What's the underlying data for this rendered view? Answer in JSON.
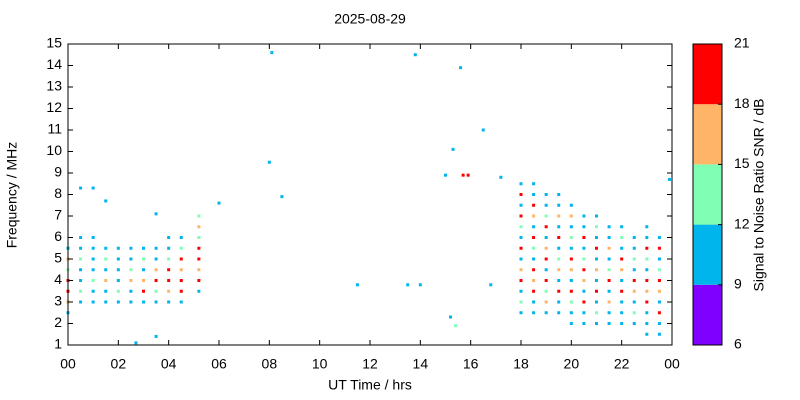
{
  "chart_data": {
    "type": "scatter",
    "title": "2025-08-29",
    "x_label": "UT Time / hrs",
    "y_label": "Frequency / MHz",
    "xlim": [
      0,
      24
    ],
    "ylim": [
      1,
      15
    ],
    "xticks": [
      {
        "value": 0,
        "label": "00"
      },
      {
        "value": 2,
        "label": "02"
      },
      {
        "value": 4,
        "label": "04"
      },
      {
        "value": 6,
        "label": "06"
      },
      {
        "value": 8,
        "label": "08"
      },
      10,
      12,
      14,
      16,
      18,
      20,
      22,
      {
        "value": 24,
        "label": "00"
      }
    ],
    "yticks": [
      1,
      2,
      3,
      4,
      5,
      6,
      7,
      8,
      9,
      10,
      11,
      12,
      13,
      14,
      15
    ],
    "x": [
      0,
      0,
      0,
      0,
      0,
      0,
      0,
      0.5,
      0.5,
      0.5,
      0.5,
      0.5,
      0.5,
      0.5,
      1,
      1,
      1,
      1,
      1,
      1,
      1,
      1.5,
      1.5,
      1.5,
      1.5,
      1.5,
      1.5,
      2,
      2,
      2,
      2,
      2,
      2,
      2.5,
      2.5,
      2.5,
      2.5,
      2.5,
      2.5,
      3,
      3,
      3,
      3,
      3,
      3,
      3.5,
      3.5,
      3.5,
      3.5,
      3.5,
      3.5,
      4,
      4,
      4,
      4,
      4,
      4,
      4,
      4.5,
      4.5,
      4.5,
      4.5,
      4.5,
      4.5,
      4.5,
      5.2,
      5.2,
      5.2,
      5.2,
      5.2,
      5.2,
      5.2,
      5.2,
      18,
      18,
      18,
      18,
      18,
      18,
      18,
      18,
      18,
      18,
      18,
      18,
      18,
      18.5,
      18.5,
      18.5,
      18.5,
      18.5,
      18.5,
      18.5,
      18.5,
      18.5,
      18.5,
      18.5,
      18.5,
      18.5,
      19,
      19,
      19,
      19,
      19,
      19,
      19,
      19,
      19,
      19,
      19,
      19,
      19.5,
      19.5,
      19.5,
      19.5,
      19.5,
      19.5,
      19.5,
      19.5,
      19.5,
      19.5,
      19.5,
      19.5,
      20,
      20,
      20,
      20,
      20,
      20,
      20,
      20,
      20,
      20,
      20,
      20,
      20.5,
      20.5,
      20.5,
      20.5,
      20.5,
      20.5,
      20.5,
      20.5,
      20.5,
      20.5,
      20.5,
      21,
      21,
      21,
      21,
      21,
      21,
      21,
      21,
      21,
      21,
      21,
      21.5,
      21.5,
      21.5,
      21.5,
      21.5,
      21.5,
      21.5,
      21.5,
      21.5,
      21.5,
      22,
      22,
      22,
      22,
      22,
      22,
      22,
      22,
      22,
      22,
      22.5,
      22.5,
      22.5,
      22.5,
      22.5,
      22.5,
      22.5,
      22.5,
      22.5,
      23,
      23,
      23,
      23,
      23,
      23,
      23,
      23,
      23,
      23,
      23,
      23.5,
      23.5,
      23.5,
      23.5,
      23.5,
      23.5,
      23.5,
      23.5,
      23.5,
      23.5,
      0.5,
      1,
      1.5,
      3.5,
      6,
      8.1,
      8,
      8.5,
      11.5,
      13.5,
      14,
      13.8,
      15,
      15.3,
      15.6,
      15.7,
      15.9,
      16.5,
      16.8,
      17.2,
      15.2,
      15.4,
      2.7,
      23.9,
      3.5
    ],
    "values": [
      2.5,
      3,
      3.5,
      4,
      4.5,
      5,
      5.5,
      3,
      3.5,
      4,
      4.5,
      5,
      5.5,
      6,
      3,
      3.5,
      4,
      4.5,
      5,
      5.5,
      6,
      3,
      3.5,
      4,
      4.5,
      5,
      5.5,
      3,
      3.5,
      4,
      4.5,
      5,
      5.5,
      3,
      3.5,
      4,
      4.5,
      5,
      5.5,
      3,
      3.5,
      4,
      4.5,
      5,
      5.5,
      3,
      3.5,
      4,
      4.5,
      5,
      5.5,
      3,
      3.5,
      4,
      4.5,
      5,
      5.5,
      6,
      3,
      3.5,
      4,
      4.5,
      5,
      5.5,
      6,
      3.5,
      4,
      4.5,
      5,
      5.5,
      6,
      6.5,
      7,
      2.5,
      3,
      3.5,
      4,
      4.5,
      5,
      5.5,
      6,
      6.5,
      7,
      7.5,
      8,
      8.5,
      2.5,
      3,
      3.5,
      4,
      4.5,
      5,
      5.5,
      6,
      6.5,
      7,
      7.5,
      8,
      8.5,
      2.5,
      3,
      3.5,
      4,
      4.5,
      5,
      5.5,
      6,
      6.5,
      7,
      7.5,
      8,
      2.5,
      3,
      3.5,
      4,
      4.5,
      5,
      5.5,
      6,
      6.5,
      7,
      7.5,
      8,
      2,
      2.5,
      3,
      3.5,
      4,
      4.5,
      5,
      5.5,
      6,
      6.5,
      7,
      7.5,
      2,
      2.5,
      3,
      3.5,
      4,
      4.5,
      5,
      5.5,
      6,
      6.5,
      7,
      2,
      2.5,
      3,
      3.5,
      4,
      4.5,
      5,
      5.5,
      6,
      6.5,
      7,
      2,
      2.5,
      3,
      3.5,
      4,
      4.5,
      5,
      5.5,
      6,
      6.5,
      2,
      2.5,
      3,
      3.5,
      4,
      4.5,
      5,
      5.5,
      6,
      6.5,
      2,
      2.5,
      3,
      3.5,
      4,
      4.5,
      5,
      5.5,
      6,
      1.5,
      2,
      2.5,
      3,
      3.5,
      4,
      4.5,
      5,
      5.5,
      6,
      6.5,
      1.5,
      2,
      2.5,
      3,
      3.5,
      4,
      4.5,
      5,
      5.5,
      6,
      8.3,
      8.3,
      7.7,
      7.1,
      7.6,
      14.6,
      9.5,
      7.9,
      3.8,
      3.8,
      3.8,
      14.5,
      8.9,
      10.1,
      13.9,
      8.9,
      8.9,
      11,
      3.8,
      8.8,
      2.3,
      1.9,
      1.1,
      8.7,
      1.4
    ],
    "snr": [
      10,
      16,
      19,
      19,
      13,
      16,
      10,
      10,
      13,
      10,
      10,
      13,
      10,
      10,
      10,
      10,
      13,
      10,
      10,
      10,
      10,
      10,
      10,
      16,
      10,
      13,
      10,
      10,
      13,
      10,
      10,
      10,
      10,
      10,
      10,
      16,
      13,
      10,
      10,
      10,
      19,
      16,
      10,
      13,
      10,
      10,
      13,
      19,
      16,
      10,
      10,
      10,
      16,
      19,
      19,
      13,
      10,
      10,
      10,
      19,
      19,
      16,
      19,
      13,
      10,
      10,
      19,
      16,
      19,
      19,
      13,
      16,
      13,
      10,
      13,
      10,
      19,
      16,
      10,
      19,
      10,
      13,
      19,
      10,
      19,
      10,
      10,
      10,
      19,
      16,
      19,
      10,
      13,
      19,
      10,
      16,
      19,
      10,
      10,
      10,
      16,
      13,
      19,
      10,
      19,
      16,
      10,
      19,
      13,
      10,
      10,
      10,
      10,
      19,
      10,
      16,
      13,
      10,
      19,
      10,
      16,
      10,
      10,
      10,
      10,
      13,
      19,
      10,
      16,
      19,
      10,
      13,
      10,
      16,
      10,
      10,
      10,
      19,
      10,
      16,
      19,
      13,
      10,
      19,
      10,
      10,
      10,
      13,
      10,
      19,
      10,
      16,
      10,
      19,
      10,
      13,
      10,
      10,
      10,
      16,
      10,
      19,
      13,
      10,
      16,
      10,
      10,
      10,
      10,
      10,
      19,
      10,
      16,
      19,
      10,
      13,
      10,
      10,
      13,
      10,
      16,
      19,
      10,
      13,
      10,
      10,
      10,
      10,
      10,
      19,
      16,
      19,
      10,
      13,
      19,
      10,
      10,
      10,
      10,
      19,
      10,
      16,
      19,
      13,
      10,
      19,
      10,
      10,
      10,
      10,
      10,
      10,
      10,
      10,
      10,
      10,
      10,
      10,
      10,
      10,
      10,
      10,
      19,
      19,
      10,
      10,
      10,
      10,
      13,
      10,
      10,
      10
    ],
    "colorbar": {
      "label": "Signal to Noise Ratio SNR / dB",
      "bounds": [
        6,
        9,
        12,
        15,
        18,
        21
      ],
      "colors": [
        "#8000ff",
        "#00b4ec",
        "#80ffb4",
        "#ffb468",
        "#ff0000"
      ],
      "ticks": [
        6,
        9,
        12,
        15,
        18,
        21
      ]
    }
  }
}
